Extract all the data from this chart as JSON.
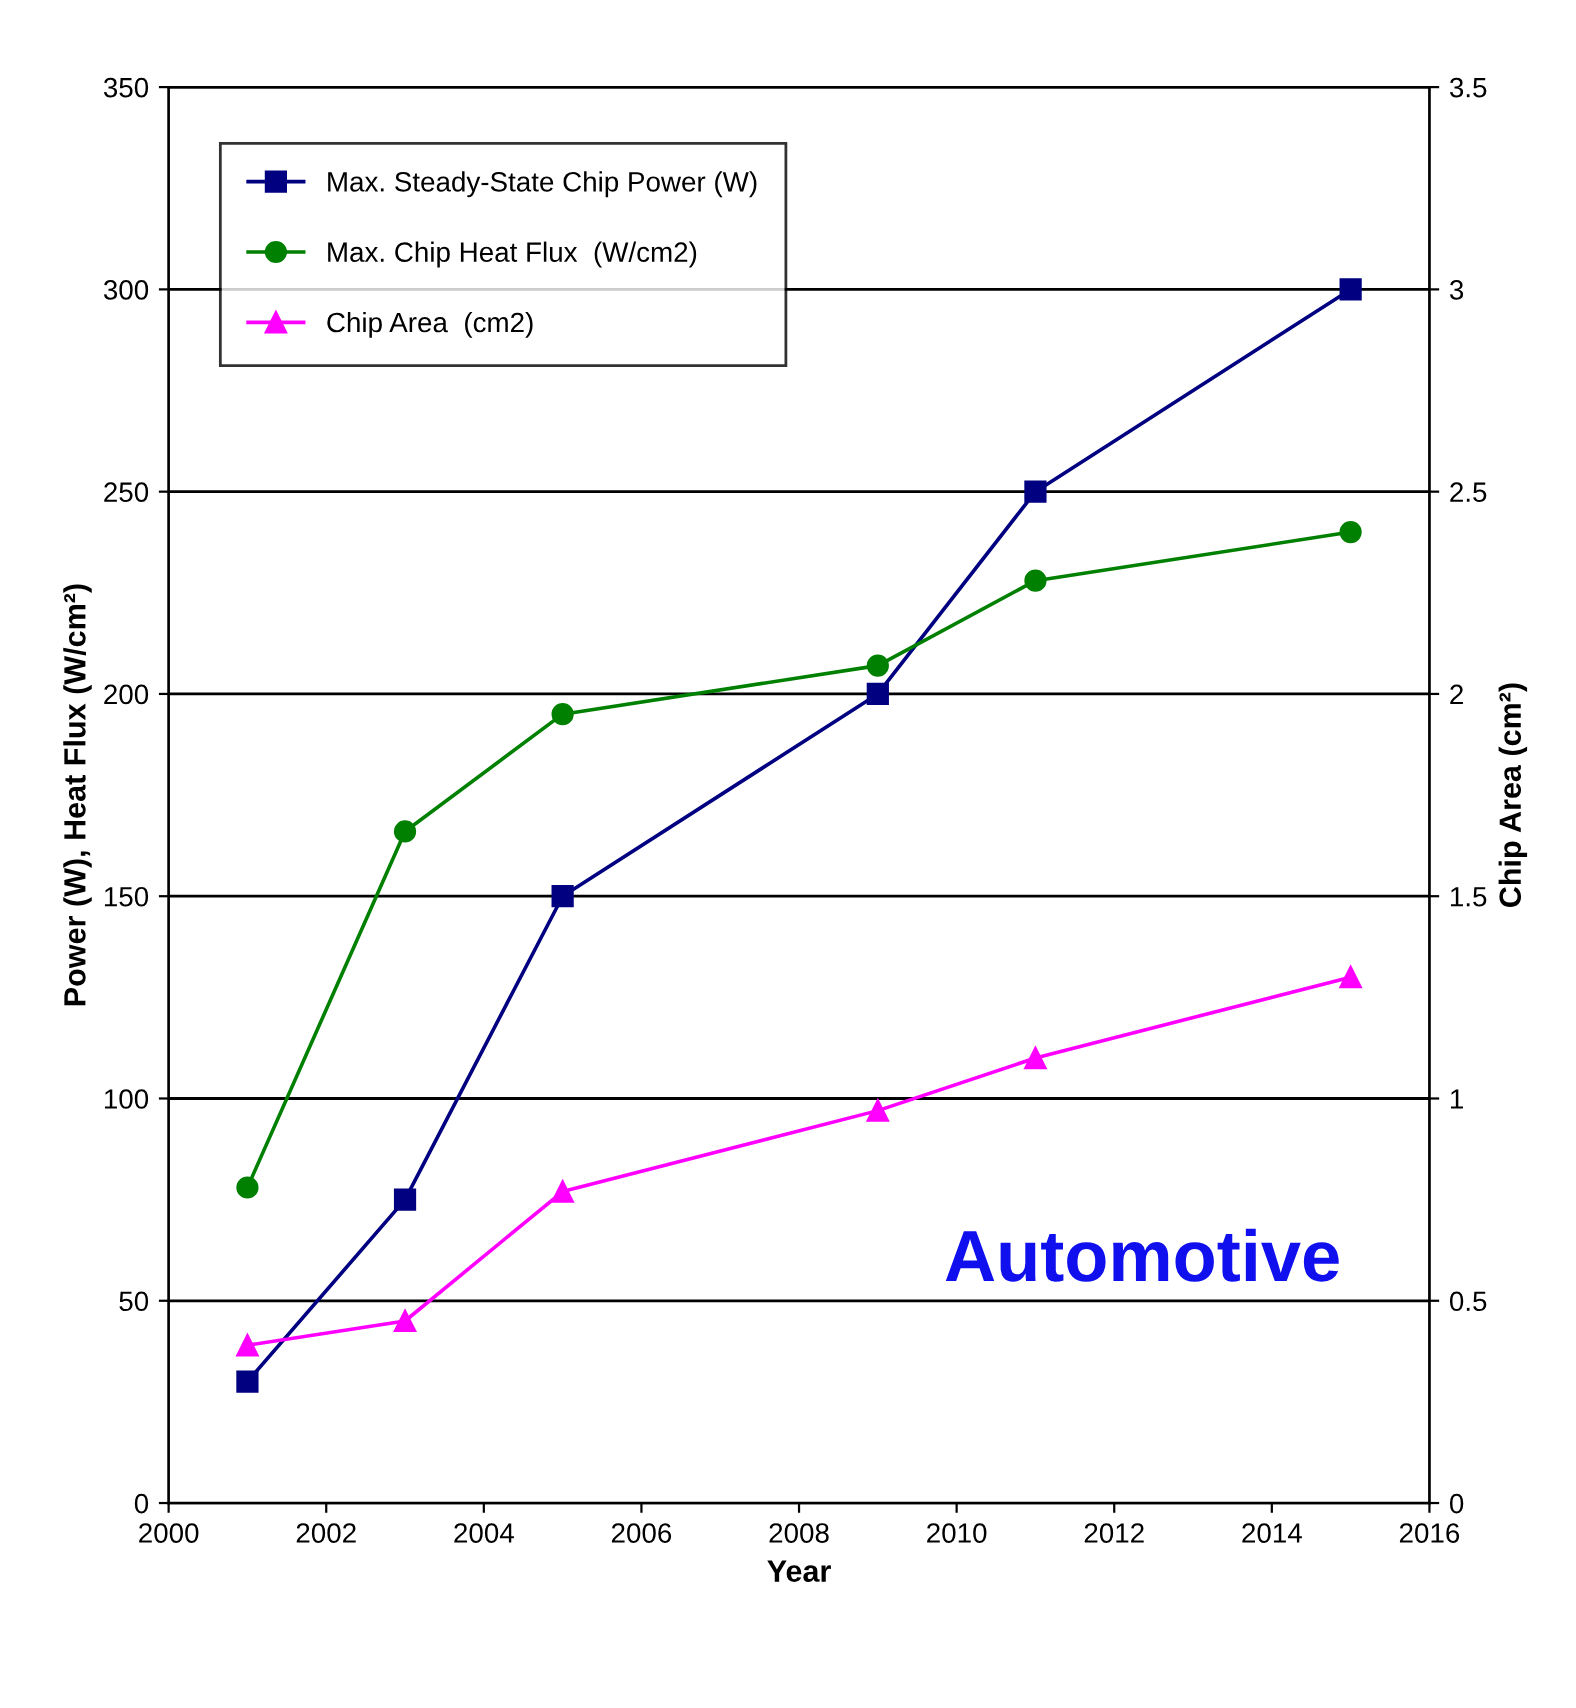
{
  "chart_data": {
    "type": "line",
    "xlabel": "Year",
    "ylabel": "Power (W), Heat Flux (W/cm²)",
    "y2label": "Chip Area (cm²)",
    "x": [
      2001,
      2003,
      2005,
      2009,
      2011,
      2015
    ],
    "series": [
      {
        "name": "Max. Steady-State Chip Power (W)",
        "color": "#000080",
        "marker": "square",
        "values": [
          30,
          75,
          150,
          200,
          250,
          300
        ]
      },
      {
        "name": "Max. Chip Heat Flux  (W/cm2)",
        "color": "#008000",
        "marker": "circle",
        "values": [
          78,
          166,
          195,
          207,
          228,
          240
        ]
      },
      {
        "name": "Chip Area  (cm2)",
        "color": "#ff00ff",
        "marker": "triangle",
        "axis": "y2",
        "values": [
          0.39,
          0.45,
          0.77,
          0.97,
          1.1,
          1.3
        ]
      }
    ],
    "xlim": [
      2000,
      2016
    ],
    "xticks": [
      2000,
      2002,
      2004,
      2006,
      2008,
      2010,
      2012,
      2014,
      2016
    ],
    "ylim": [
      0,
      350
    ],
    "yticks": [
      0,
      50,
      100,
      150,
      200,
      250,
      300,
      350
    ],
    "y2lim": [
      0,
      3.5
    ],
    "y2ticks": [
      0,
      0.5,
      1,
      1.5,
      2,
      2.5,
      3,
      3.5
    ],
    "grid": "y",
    "legend": "top left",
    "annotations": [
      "Automotive"
    ]
  }
}
